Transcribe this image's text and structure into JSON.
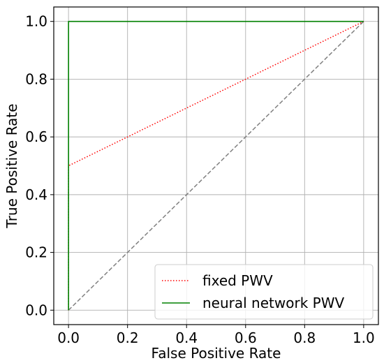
{
  "chart_data": {
    "type": "line",
    "title": "",
    "xlabel": "False Positive Rate",
    "ylabel": "True Positive Rate",
    "xlim": [
      -0.05,
      1.05
    ],
    "ylim": [
      -0.05,
      1.05
    ],
    "xticks": [
      0.0,
      0.2,
      0.4,
      0.6,
      0.8,
      1.0
    ],
    "yticks": [
      0.0,
      0.2,
      0.4,
      0.6,
      0.8,
      1.0
    ],
    "xtick_labels": [
      "0.0",
      "0.2",
      "0.4",
      "0.6",
      "0.8",
      "1.0"
    ],
    "ytick_labels": [
      "0.0",
      "0.2",
      "0.4",
      "0.6",
      "0.8",
      "1.0"
    ],
    "grid": true,
    "legend_position": "bottom-right",
    "series": [
      {
        "name": "fixed PWV",
        "color": "#ff0000",
        "style": "dotted",
        "x": [
          0.0,
          0.0,
          1.0
        ],
        "y": [
          0.0,
          0.5,
          1.0
        ]
      },
      {
        "name": "neural network PWV",
        "color": "#008000",
        "style": "solid",
        "x": [
          0.0,
          0.0,
          1.0
        ],
        "y": [
          0.0,
          1.0,
          1.0
        ]
      },
      {
        "color": "#808080",
        "style": "dashed",
        "x": [
          0.0,
          1.0
        ],
        "y": [
          0.0,
          1.0
        ]
      }
    ]
  }
}
